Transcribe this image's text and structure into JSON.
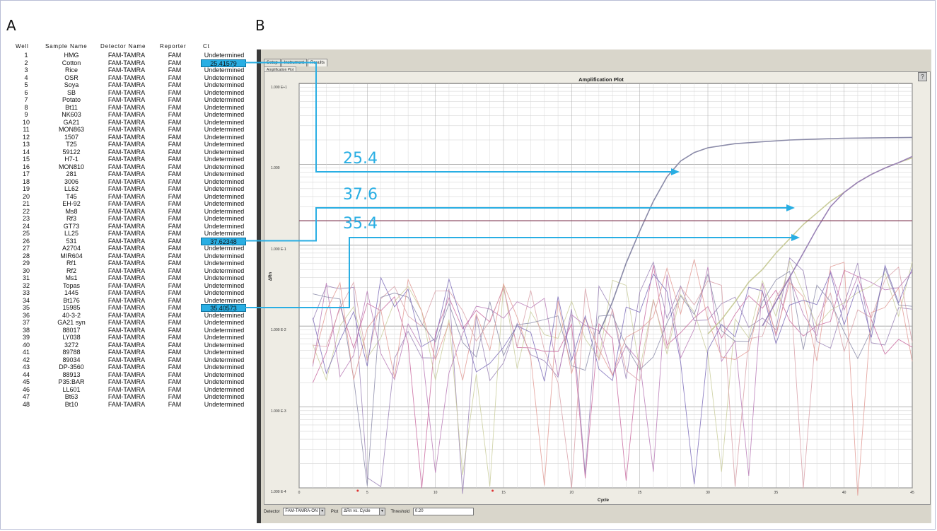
{
  "panels": {
    "a": "A",
    "b": "B"
  },
  "table": {
    "headers": [
      "Well",
      "Sample Name",
      "Detector Name",
      "Reporter",
      "Ct"
    ],
    "rows": [
      [
        "1",
        "HMG",
        "FAM-TAMRA",
        "FAM",
        "Undetermined"
      ],
      [
        "2",
        "Cotton",
        "FAM-TAMRA",
        "FAM",
        "25.41579"
      ],
      [
        "3",
        "Rice",
        "FAM-TAMRA",
        "FAM",
        "Undetermined"
      ],
      [
        "4",
        "OSR",
        "FAM-TAMRA",
        "FAM",
        "Undetermined"
      ],
      [
        "5",
        "Soya",
        "FAM-TAMRA",
        "FAM",
        "Undetermined"
      ],
      [
        "6",
        "SB",
        "FAM-TAMRA",
        "FAM",
        "Undetermined"
      ],
      [
        "7",
        "Potato",
        "FAM-TAMRA",
        "FAM",
        "Undetermined"
      ],
      [
        "8",
        "Bt11",
        "FAM-TAMRA",
        "FAM",
        "Undetermined"
      ],
      [
        "9",
        "NK603",
        "FAM-TAMRA",
        "FAM",
        "Undetermined"
      ],
      [
        "10",
        "GA21",
        "FAM-TAMRA",
        "FAM",
        "Undetermined"
      ],
      [
        "11",
        "MON863",
        "FAM-TAMRA",
        "FAM",
        "Undetermined"
      ],
      [
        "12",
        "1507",
        "FAM-TAMRA",
        "FAM",
        "Undetermined"
      ],
      [
        "13",
        "T25",
        "FAM-TAMRA",
        "FAM",
        "Undetermined"
      ],
      [
        "14",
        "59122",
        "FAM-TAMRA",
        "FAM",
        "Undetermined"
      ],
      [
        "15",
        "H7-1",
        "FAM-TAMRA",
        "FAM",
        "Undetermined"
      ],
      [
        "16",
        "MON810",
        "FAM-TAMRA",
        "FAM",
        "Undetermined"
      ],
      [
        "17",
        "281",
        "FAM-TAMRA",
        "FAM",
        "Undetermined"
      ],
      [
        "18",
        "3006",
        "FAM-TAMRA",
        "FAM",
        "Undetermined"
      ],
      [
        "19",
        "LL62",
        "FAM-TAMRA",
        "FAM",
        "Undetermined"
      ],
      [
        "20",
        "T45",
        "FAM-TAMRA",
        "FAM",
        "Undetermined"
      ],
      [
        "21",
        "EH-92",
        "FAM-TAMRA",
        "FAM",
        "Undetermined"
      ],
      [
        "22",
        "Ms8",
        "FAM-TAMRA",
        "FAM",
        "Undetermined"
      ],
      [
        "23",
        "Rf3",
        "FAM-TAMRA",
        "FAM",
        "Undetermined"
      ],
      [
        "24",
        "GT73",
        "FAM-TAMRA",
        "FAM",
        "Undetermined"
      ],
      [
        "25",
        "LL25",
        "FAM-TAMRA",
        "FAM",
        "Undetermined"
      ],
      [
        "26",
        "531",
        "FAM-TAMRA",
        "FAM",
        "37.62348"
      ],
      [
        "27",
        "A2704",
        "FAM-TAMRA",
        "FAM",
        "Undetermined"
      ],
      [
        "28",
        "MIR604",
        "FAM-TAMRA",
        "FAM",
        "Undetermined"
      ],
      [
        "29",
        "Rf1",
        "FAM-TAMRA",
        "FAM",
        "Undetermined"
      ],
      [
        "30",
        "Rf2",
        "FAM-TAMRA",
        "FAM",
        "Undetermined"
      ],
      [
        "31",
        "Ms1",
        "FAM-TAMRA",
        "FAM",
        "Undetermined"
      ],
      [
        "32",
        "Topas",
        "FAM-TAMRA",
        "FAM",
        "Undetermined"
      ],
      [
        "33",
        "1445",
        "FAM-TAMRA",
        "FAM",
        "Undetermined"
      ],
      [
        "34",
        "Bt176",
        "FAM-TAMRA",
        "FAM",
        "Undetermined"
      ],
      [
        "35",
        "15985",
        "FAM-TAMRA",
        "FAM",
        "35.40573"
      ],
      [
        "36",
        "40-3-2",
        "FAM-TAMRA",
        "FAM",
        "Undetermined"
      ],
      [
        "37",
        "GA21 syn",
        "FAM-TAMRA",
        "FAM",
        "Undetermined"
      ],
      [
        "38",
        "88017",
        "FAM-TAMRA",
        "FAM",
        "Undetermined"
      ],
      [
        "39",
        "LY038",
        "FAM-TAMRA",
        "FAM",
        "Undetermined"
      ],
      [
        "40",
        "3272",
        "FAM-TAMRA",
        "FAM",
        "Undetermined"
      ],
      [
        "41",
        "89788",
        "FAM-TAMRA",
        "FAM",
        "Undetermined"
      ],
      [
        "42",
        "89034",
        "FAM-TAMRA",
        "FAM",
        "Undetermined"
      ],
      [
        "43",
        "DP-3560",
        "FAM-TAMRA",
        "FAM",
        "Undetermined"
      ],
      [
        "44",
        "88913",
        "FAM-TAMRA",
        "FAM",
        "Undetermined"
      ],
      [
        "45",
        "P35:BAR",
        "FAM-TAMRA",
        "FAM",
        "Undetermined"
      ],
      [
        "46",
        "LL601",
        "FAM-TAMRA",
        "FAM",
        "Undetermined"
      ],
      [
        "47",
        "Bt63",
        "FAM-TAMRA",
        "FAM",
        "Undetermined"
      ],
      [
        "48",
        "Bt10",
        "FAM-TAMRA",
        "FAM",
        "Undetermined"
      ]
    ],
    "highlight_color": "#29aee3"
  },
  "software": {
    "tabs": [
      "Setup",
      "Instrument",
      "Results"
    ],
    "active_tab": "Results",
    "sub_tab": "Amplification Plot",
    "help_label": "?",
    "detector_label": "Detector",
    "detector_value": "FAM-TAMRA-ON",
    "plot_label": "Plot",
    "plot_value": "ΔRn vs. Cycle",
    "threshold_label": "Threshold",
    "threshold_value": "0.20"
  },
  "chart_data": {
    "type": "line",
    "title": "Amplification Plot",
    "xlabel": "Cycle",
    "ylabel": "ΔRn",
    "y_scale": "log",
    "xlim": [
      0,
      45
    ],
    "ylim": [
      0.0001,
      10
    ],
    "x_ticks": [
      "0",
      "5",
      "10",
      "15",
      "20",
      "25",
      "30",
      "35",
      "40",
      "45"
    ],
    "y_ticks": [
      "1.000 E+1",
      "1.000",
      "1.000 E-1",
      "1.000 E-2",
      "1.000 E-3",
      "1.000 E-4"
    ],
    "grid": true,
    "threshold": 0.2,
    "threshold_color": "#8b4a62",
    "series": [
      {
        "color": "#8a8aa8",
        "x": [
          22,
          23,
          24,
          25,
          26,
          27,
          28,
          29,
          30,
          32,
          34,
          36,
          38,
          40,
          42,
          45
        ],
        "y": [
          0.008,
          0.02,
          0.06,
          0.15,
          0.35,
          0.7,
          1.1,
          1.4,
          1.6,
          1.8,
          1.9,
          2.0,
          2.05,
          2.1,
          2.12,
          2.15
        ]
      },
      {
        "color": "#c9cc9a",
        "x": [
          30,
          31,
          32,
          33,
          34,
          35,
          36,
          37,
          38,
          39,
          40,
          41,
          42,
          43,
          44,
          45
        ],
        "y": [
          0.008,
          0.012,
          0.02,
          0.035,
          0.05,
          0.08,
          0.12,
          0.18,
          0.25,
          0.35,
          0.45,
          0.6,
          0.75,
          0.9,
          1.05,
          1.2
        ]
      },
      {
        "color": "#9a82b6",
        "x": [
          34,
          35,
          36,
          37,
          38,
          39,
          40,
          41,
          42,
          43,
          44,
          45
        ],
        "y": [
          0.01,
          0.02,
          0.04,
          0.08,
          0.16,
          0.3,
          0.45,
          0.6,
          0.75,
          0.9,
          1.05,
          1.25
        ]
      }
    ],
    "noise_colors": [
      "#c96aa0",
      "#9a82b6",
      "#c9cc9a",
      "#d8a0a8",
      "#b87ab6",
      "#8a8aa8",
      "#e29a94",
      "#7b6bb8"
    ],
    "annotations": [
      {
        "label": "25.4",
        "ct": 25.41579
      },
      {
        "label": "37.6",
        "ct": 37.62348
      },
      {
        "label": "35.4",
        "ct": 35.40573
      }
    ]
  }
}
